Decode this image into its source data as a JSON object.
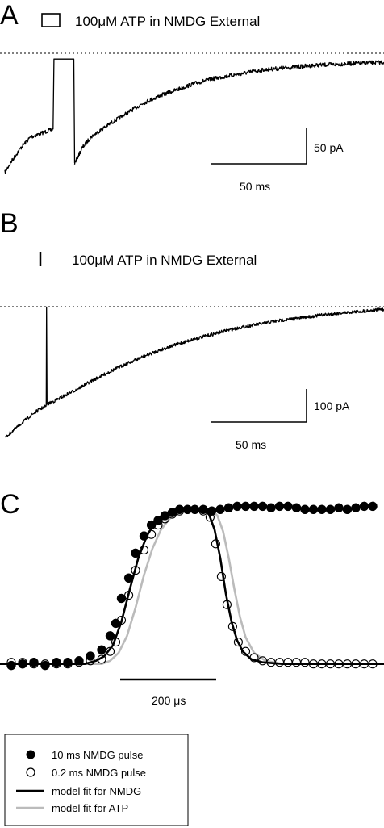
{
  "chart_data": [
    {
      "panel": "A",
      "type": "line",
      "annotation": "100μM ATP in NMDG External",
      "scale_bar": {
        "y_label": "50 pA",
        "x_label": "50 ms",
        "y_value": 50,
        "x_value": 50
      },
      "xlim": [
        0,
        220
      ],
      "ylim": [
        -75,
        8
      ],
      "x_unit": "ms",
      "y_unit": "pA",
      "baseline": 0,
      "segments": [
        {
          "x": [
            0,
            5,
            10,
            15,
            20,
            25,
            28
          ],
          "y": [
            -73,
            -64,
            -56,
            -50,
            -48,
            -46,
            -45
          ]
        },
        {
          "x": [
            28,
            28.5,
            40,
            40.5
          ],
          "y": [
            -45,
            1,
            1,
            -67
          ]
        },
        {
          "x": [
            40.5,
            45,
            50,
            60,
            70,
            80,
            90,
            100,
            110,
            120,
            130,
            140,
            150,
            160,
            170,
            180,
            190,
            200,
            210,
            220
          ],
          "y": [
            -67,
            -57,
            -50,
            -42,
            -35,
            -28,
            -23,
            -19,
            -15,
            -12,
            -10,
            -8,
            -6,
            -5,
            -4,
            -3,
            -2.5,
            -2,
            -1.5,
            -1
          ]
        }
      ]
    },
    {
      "panel": "B",
      "type": "line",
      "annotation": "100μM ATP in NMDG External",
      "scale_bar": {
        "y_label": "100 pA",
        "x_label": "50 ms",
        "y_value": 100,
        "x_value": 50
      },
      "xlim": [
        0,
        220
      ],
      "ylim": [
        -180,
        8
      ],
      "x_unit": "ms",
      "y_unit": "pA",
      "baseline": 0,
      "segments": [
        {
          "x": [
            0,
            5,
            10,
            15,
            20,
            24
          ],
          "y": [
            -175,
            -165,
            -155,
            -145,
            -137,
            -132
          ]
        },
        {
          "x": [
            24,
            24.2,
            24.5
          ],
          "y": [
            -132,
            1,
            -130
          ]
        },
        {
          "x": [
            24.5,
            30,
            40,
            50,
            60,
            70,
            80,
            90,
            100,
            110,
            120,
            130,
            140,
            150,
            160,
            170,
            180,
            190,
            200,
            210,
            220
          ],
          "y": [
            -130,
            -124,
            -112,
            -99,
            -87,
            -76,
            -66,
            -57,
            -49,
            -42,
            -36,
            -30,
            -25,
            -21,
            -17,
            -14,
            -11,
            -8,
            -6,
            -4,
            -2
          ]
        }
      ]
    },
    {
      "panel": "C",
      "type": "scatter",
      "scale_bar": {
        "x_label": "200 μs",
        "x_value": 200
      },
      "xlim": [
        0,
        680
      ],
      "ylim": [
        -0.1,
        1.1
      ],
      "x_unit": "μs",
      "series": [
        {
          "name": "10 ms NMDG pulse",
          "marker": "filled-circle",
          "x": [
            20,
            40,
            60,
            80,
            100,
            120,
            140,
            160,
            180,
            195,
            205,
            215,
            228,
            240,
            255,
            268,
            280,
            292,
            305,
            318,
            332,
            345,
            360,
            375,
            390,
            405,
            420,
            435,
            450,
            465,
            480,
            495,
            510,
            525,
            540,
            555,
            570,
            585,
            600,
            615,
            630,
            645,
            660
          ],
          "y": [
            -0.01,
            0,
            0.01,
            -0.01,
            0.01,
            0.01,
            0.02,
            0.05,
            0.09,
            0.18,
            0.26,
            0.42,
            0.55,
            0.71,
            0.82,
            0.89,
            0.92,
            0.95,
            0.97,
            0.99,
            0.99,
            0.99,
            0.99,
            0.98,
            0.99,
            1,
            1.01,
            1.01,
            1.01,
            1.01,
            1,
            1.01,
            1.01,
            1,
            0.99,
            0.99,
            0.99,
            0.99,
            1,
            0.99,
            1,
            1.01,
            1.01
          ]
        },
        {
          "name": "0.2 ms NMDG pulse",
          "marker": "open-circle",
          "x": [
            20,
            40,
            60,
            80,
            100,
            120,
            140,
            160,
            180,
            195,
            205,
            215,
            228,
            240,
            255,
            268,
            280,
            292,
            305,
            318,
            332,
            345,
            360,
            372,
            382,
            392,
            402,
            412,
            422,
            435,
            450,
            465,
            480,
            495,
            510,
            525,
            540,
            555,
            570,
            585,
            600,
            615,
            630,
            645,
            660
          ],
          "y": [
            0.01,
            0.01,
            0,
            0,
            0,
            0,
            0.01,
            0.02,
            0.03,
            0.08,
            0.14,
            0.28,
            0.44,
            0.6,
            0.73,
            0.83,
            0.89,
            0.93,
            0.96,
            0.98,
            0.99,
            0.99,
            0.98,
            0.94,
            0.77,
            0.56,
            0.38,
            0.24,
            0.14,
            0.08,
            0.04,
            0.02,
            0.01,
            0.01,
            0.01,
            0.01,
            0.01,
            0,
            0,
            0,
            0,
            0,
            0,
            0,
            0
          ]
        }
      ],
      "curves": [
        {
          "name": "model fit for NMDG",
          "color": "#000000",
          "x": [
            0,
            150,
            170,
            185,
            200,
            215,
            230,
            245,
            260,
            275,
            290,
            310,
            340,
            360,
            370,
            380,
            390,
            400,
            410,
            420,
            430,
            445,
            465,
            500,
            680
          ],
          "y": [
            0,
            0,
            0.02,
            0.05,
            0.12,
            0.27,
            0.48,
            0.68,
            0.82,
            0.91,
            0.96,
            0.99,
            1,
            0.99,
            0.96,
            0.86,
            0.68,
            0.45,
            0.27,
            0.15,
            0.08,
            0.03,
            0.01,
            0,
            0
          ]
        },
        {
          "name": "model fit for ATP",
          "color": "#bbbbbb",
          "x": [
            0,
            180,
            195,
            210,
            225,
            240,
            255,
            270,
            285,
            300,
            320,
            350,
            375,
            385,
            395,
            405,
            415,
            425,
            435,
            450,
            470,
            500,
            680
          ],
          "y": [
            0,
            0,
            0.02,
            0.07,
            0.18,
            0.36,
            0.57,
            0.74,
            0.86,
            0.93,
            0.98,
            1,
            0.99,
            0.95,
            0.85,
            0.68,
            0.48,
            0.3,
            0.17,
            0.07,
            0.02,
            0,
            0
          ]
        }
      ]
    }
  ],
  "panels": {
    "a_label": "A",
    "b_label": "B",
    "c_label": "C"
  },
  "legend": {
    "items": [
      {
        "label": "10 ms NMDG pulse"
      },
      {
        "label": "0.2 ms NMDG pulse"
      },
      {
        "label": "model fit for NMDG"
      },
      {
        "label": "model fit for ATP"
      }
    ]
  },
  "colors": {
    "trace": "#000000",
    "atp_fit": "#bbbbbb"
  }
}
